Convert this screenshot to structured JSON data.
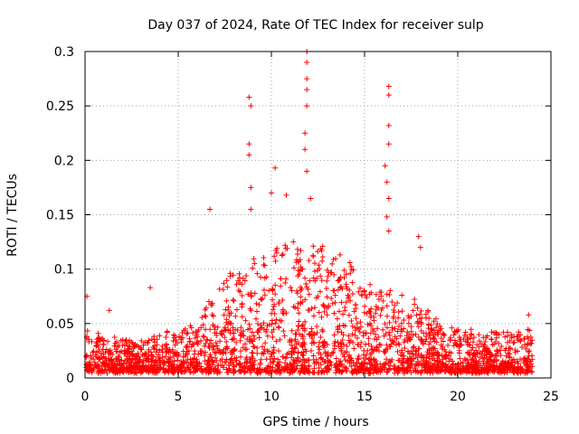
{
  "chart_data": {
    "type": "scatter",
    "title": "Day 037 of 2024, Rate Of TEC Index for receiver sulp",
    "xlabel": "GPS time / hours",
    "ylabel": "ROTI / TECUs",
    "xlim": [
      0,
      25
    ],
    "ylim": [
      0,
      0.3
    ],
    "xticks": [
      0,
      5,
      10,
      15,
      20,
      25
    ],
    "xtick_labels": [
      "0",
      "5",
      "10",
      "15",
      "20",
      "25"
    ],
    "yticks": [
      0,
      0.05,
      0.1,
      0.15,
      0.2,
      0.25,
      0.3
    ],
    "ytick_labels": [
      "0",
      "0.05",
      "0.1",
      "0.15",
      "0.2",
      "0.25",
      "0.3"
    ],
    "grid": true,
    "marker": "+",
    "color": "#ff0000",
    "grid_color": "#a0a0a0",
    "series": [
      {
        "name": "ROTI",
        "envelope_note": "dense cloud of points from 0 to 24 h; typical upper envelope per hour",
        "envelope_hours": [
          0,
          1,
          2,
          3,
          4,
          5,
          6,
          7,
          8,
          9,
          10,
          11,
          12,
          13,
          14,
          15,
          16,
          17,
          18,
          19,
          20,
          21,
          22,
          23,
          24
        ],
        "envelope_values": [
          0.045,
          0.04,
          0.035,
          0.033,
          0.04,
          0.045,
          0.05,
          0.08,
          0.1,
          0.11,
          0.12,
          0.13,
          0.12,
          0.12,
          0.11,
          0.09,
          0.085,
          0.08,
          0.07,
          0.05,
          0.045,
          0.045,
          0.045,
          0.04,
          0.045
        ],
        "peaks": [
          {
            "x": 0.1,
            "y": 0.075
          },
          {
            "x": 1.3,
            "y": 0.062
          },
          {
            "x": 3.5,
            "y": 0.083
          },
          {
            "x": 6.7,
            "y": 0.155
          },
          {
            "x": 8.8,
            "y": 0.258
          },
          {
            "x": 8.9,
            "y": 0.25
          },
          {
            "x": 8.8,
            "y": 0.215
          },
          {
            "x": 8.8,
            "y": 0.205
          },
          {
            "x": 8.9,
            "y": 0.175
          },
          {
            "x": 8.9,
            "y": 0.155
          },
          {
            "x": 10.2,
            "y": 0.193
          },
          {
            "x": 10.0,
            "y": 0.17
          },
          {
            "x": 10.8,
            "y": 0.168
          },
          {
            "x": 11.9,
            "y": 0.3
          },
          {
            "x": 11.9,
            "y": 0.29
          },
          {
            "x": 11.9,
            "y": 0.275
          },
          {
            "x": 11.9,
            "y": 0.265
          },
          {
            "x": 11.9,
            "y": 0.25
          },
          {
            "x": 11.8,
            "y": 0.225
          },
          {
            "x": 11.8,
            "y": 0.21
          },
          {
            "x": 11.9,
            "y": 0.19
          },
          {
            "x": 12.1,
            "y": 0.165
          },
          {
            "x": 16.3,
            "y": 0.268
          },
          {
            "x": 16.3,
            "y": 0.26
          },
          {
            "x": 16.3,
            "y": 0.232
          },
          {
            "x": 16.3,
            "y": 0.215
          },
          {
            "x": 16.1,
            "y": 0.195
          },
          {
            "x": 16.2,
            "y": 0.18
          },
          {
            "x": 16.3,
            "y": 0.165
          },
          {
            "x": 16.2,
            "y": 0.148
          },
          {
            "x": 16.3,
            "y": 0.135
          },
          {
            "x": 17.9,
            "y": 0.13
          },
          {
            "x": 18.0,
            "y": 0.12
          },
          {
            "x": 23.8,
            "y": 0.058
          }
        ]
      }
    ]
  }
}
